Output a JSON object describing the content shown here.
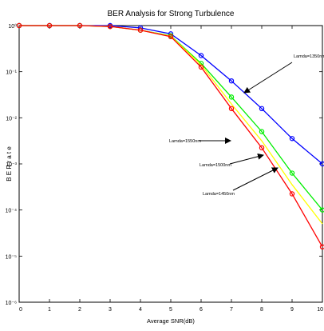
{
  "chart_data": {
    "type": "line",
    "title": "BER Analysis for Strong Turbulence",
    "xlabel": "Average SNR(dB)",
    "ylabel": "B E R  r a t e",
    "xlim": [
      0,
      10
    ],
    "ylim_exponent": [
      -6,
      0
    ],
    "yscale": "log",
    "x_ticks": [
      "0",
      "1",
      "2",
      "3",
      "4",
      "5",
      "6",
      "7",
      "8",
      "9",
      "10"
    ],
    "y_ticks": [
      "10⁰",
      "10⁻¹",
      "10⁻²",
      "10⁻³",
      "10⁻⁴",
      "10⁻⁵",
      "10⁻⁶"
    ],
    "x": [
      0,
      1,
      2,
      3,
      4,
      5,
      6,
      7,
      8,
      9,
      10
    ],
    "series": [
      {
        "name": "Lamda=1350nm",
        "color": "#0000ff",
        "markers": true,
        "log10_y": [
          0,
          0,
          0,
          0,
          -0.05,
          -0.18,
          -0.65,
          -1.2,
          -1.8,
          -2.45,
          -3.0
        ]
      },
      {
        "name": "Lamda=1550nm",
        "color": "#00ee00",
        "markers": true,
        "log10_y": [
          0,
          0,
          0,
          -0.02,
          -0.1,
          -0.22,
          -0.82,
          -1.55,
          -2.3,
          -3.2,
          -4.0
        ]
      },
      {
        "name": "Lamda=1500nm",
        "color": "#ffff00",
        "markers": false,
        "log10_y": [
          0,
          0,
          0,
          -0.02,
          -0.1,
          -0.23,
          -0.85,
          -1.7,
          -2.5,
          -3.45,
          -4.3
        ]
      },
      {
        "name": "Lamda=1450nm",
        "color": "#ff0000",
        "markers": true,
        "log10_y": [
          0,
          0,
          0,
          -0.02,
          -0.1,
          -0.24,
          -0.9,
          -1.8,
          -2.65,
          -3.65,
          -4.8
        ]
      }
    ],
    "annotations": [
      {
        "text": "Lamda=1350nm"
      },
      {
        "text": "Lamda=1550nm"
      },
      {
        "text": "Lamda=1500nm"
      },
      {
        "text": "Lamda=1450nm"
      }
    ],
    "grid": false,
    "legend": "none"
  }
}
